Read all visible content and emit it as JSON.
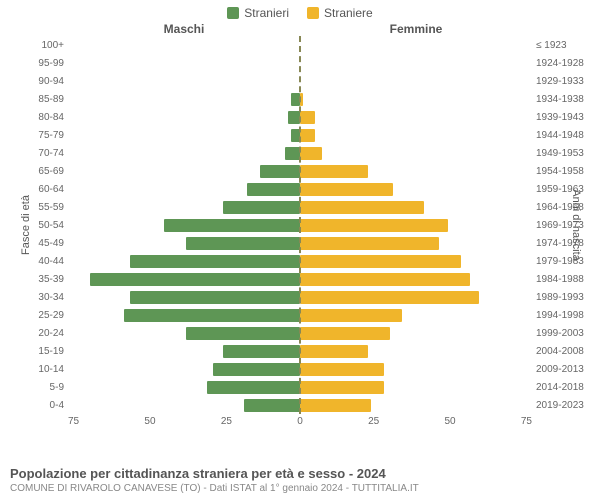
{
  "legend": {
    "male": {
      "label": "Stranieri",
      "color": "#5e9655"
    },
    "female": {
      "label": "Straniere",
      "color": "#f0b52b"
    }
  },
  "column_headers": {
    "left": "Maschi",
    "right": "Femmine"
  },
  "y_title_left": "Fasce di età",
  "y_title_right": "Anni di nascita",
  "chart": {
    "type": "population-pyramid",
    "x_max": 75,
    "x_ticks_left": [
      75,
      50,
      25,
      0
    ],
    "x_ticks_right": [
      0,
      25,
      50,
      75
    ],
    "bar_color_male": "#5e9655",
    "bar_color_female": "#f0b52b",
    "background_color": "#ffffff",
    "rows": [
      {
        "age": "100+",
        "year": "≤ 1923",
        "m": 0,
        "f": 0
      },
      {
        "age": "95-99",
        "year": "1924-1928",
        "m": 0,
        "f": 0
      },
      {
        "age": "90-94",
        "year": "1929-1933",
        "m": 0,
        "f": 0
      },
      {
        "age": "85-89",
        "year": "1934-1938",
        "m": 3,
        "f": 1
      },
      {
        "age": "80-84",
        "year": "1939-1943",
        "m": 4,
        "f": 5
      },
      {
        "age": "75-79",
        "year": "1944-1948",
        "m": 3,
        "f": 5
      },
      {
        "age": "70-74",
        "year": "1949-1953",
        "m": 5,
        "f": 7
      },
      {
        "age": "65-69",
        "year": "1954-1958",
        "m": 13,
        "f": 22
      },
      {
        "age": "60-64",
        "year": "1959-1963",
        "m": 17,
        "f": 30
      },
      {
        "age": "55-59",
        "year": "1964-1968",
        "m": 25,
        "f": 40
      },
      {
        "age": "50-54",
        "year": "1969-1973",
        "m": 44,
        "f": 48
      },
      {
        "age": "45-49",
        "year": "1974-1978",
        "m": 37,
        "f": 45
      },
      {
        "age": "40-44",
        "year": "1979-1983",
        "m": 55,
        "f": 52
      },
      {
        "age": "35-39",
        "year": "1984-1988",
        "m": 68,
        "f": 55
      },
      {
        "age": "30-34",
        "year": "1989-1993",
        "m": 55,
        "f": 58
      },
      {
        "age": "25-29",
        "year": "1994-1998",
        "m": 57,
        "f": 33
      },
      {
        "age": "20-24",
        "year": "1999-2003",
        "m": 37,
        "f": 29
      },
      {
        "age": "15-19",
        "year": "2004-2008",
        "m": 25,
        "f": 22
      },
      {
        "age": "10-14",
        "year": "2009-2013",
        "m": 28,
        "f": 27
      },
      {
        "age": "5-9",
        "year": "2014-2018",
        "m": 30,
        "f": 27
      },
      {
        "age": "0-4",
        "year": "2019-2023",
        "m": 18,
        "f": 23
      }
    ]
  },
  "footer": {
    "title": "Popolazione per cittadinanza straniera per età e sesso - 2024",
    "subtitle": "COMUNE DI RIVAROLO CANAVESE (TO) - Dati ISTAT al 1° gennaio 2024 - TUTTITALIA.IT"
  }
}
